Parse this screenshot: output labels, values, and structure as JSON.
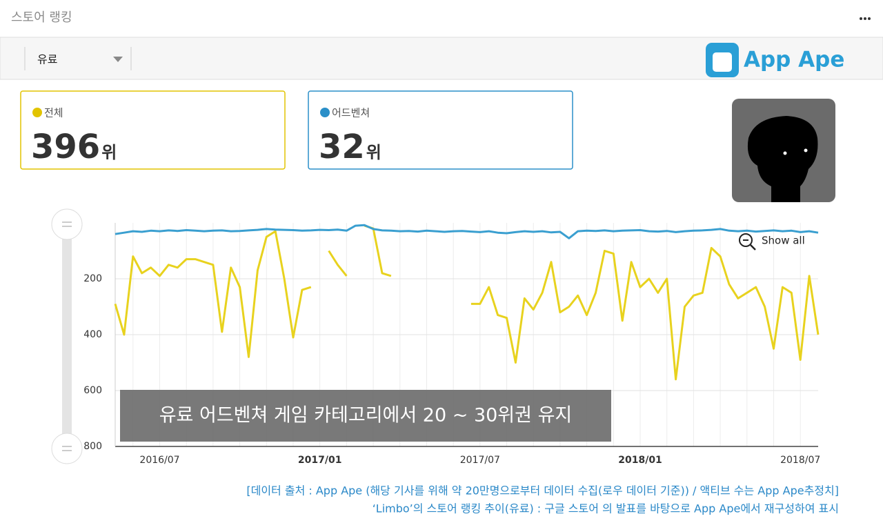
{
  "header": {
    "title": "스토어 랭킹"
  },
  "toolbar": {
    "filter": "유료",
    "logo": "App Ape"
  },
  "cards": [
    {
      "label": "전체",
      "rank": 396,
      "unit": "위",
      "color": "#e2c400"
    },
    {
      "label": "어드벤쳐",
      "rank": 32,
      "unit": "위",
      "color": "#2a8fc8"
    }
  ],
  "chart_data": {
    "type": "line",
    "y_inverted": true,
    "ylim": [
      0,
      800
    ],
    "yticks": [
      200,
      400,
      600,
      800
    ],
    "grid": true,
    "categories": [
      null,
      null,
      null,
      null,
      null,
      "2016/07",
      null,
      null,
      null,
      null,
      null,
      null,
      null,
      null,
      null,
      null,
      null,
      null,
      null,
      null,
      null,
      null,
      null,
      "2017/01",
      null,
      null,
      null,
      null,
      null,
      null,
      null,
      null,
      null,
      null,
      null,
      null,
      null,
      null,
      null,
      null,
      null,
      "2017/07",
      null,
      null,
      null,
      null,
      null,
      null,
      null,
      null,
      null,
      null,
      null,
      null,
      null,
      null,
      null,
      null,
      null,
      "2018/01",
      null,
      null,
      null,
      null,
      null,
      null,
      null,
      null,
      null,
      null,
      null,
      null,
      null,
      null,
      null,
      null,
      null,
      "2018/07",
      null,
      null
    ],
    "series": [
      {
        "color": "#3a9fd0",
        "values": [
          40,
          35,
          30,
          32,
          28,
          30,
          27,
          29,
          26,
          28,
          30,
          28,
          27,
          30,
          29,
          27,
          25,
          22,
          24,
          25,
          26,
          28,
          27,
          25,
          26,
          24,
          28,
          10,
          8,
          22,
          27,
          28,
          30,
          29,
          31,
          28,
          30,
          32,
          30,
          29,
          31,
          33,
          30,
          35,
          37,
          33,
          30,
          32,
          30,
          34,
          32,
          55,
          30,
          28,
          29,
          27,
          30,
          28,
          27,
          26,
          30,
          31,
          29,
          33,
          30,
          28,
          27,
          25,
          22,
          28,
          30,
          28,
          31,
          29,
          27,
          30,
          28,
          33,
          30,
          35
        ]
      },
      {
        "color": "#e8d21e",
        "values": [
          290,
          400,
          120,
          180,
          160,
          190,
          150,
          160,
          130,
          130,
          140,
          150,
          390,
          160,
          230,
          480,
          170,
          50,
          30,
          200,
          410,
          240,
          230,
          null,
          100,
          150,
          190,
          null,
          10,
          20,
          180,
          190,
          null,
          null,
          null,
          null,
          null,
          null,
          null,
          null,
          290,
          290,
          230,
          330,
          340,
          500,
          270,
          310,
          250,
          140,
          320,
          300,
          260,
          330,
          250,
          100,
          110,
          350,
          140,
          230,
          200,
          250,
          200,
          560,
          300,
          260,
          250,
          90,
          120,
          220,
          270,
          250,
          230,
          300,
          450,
          230,
          250,
          490,
          190,
          400
        ]
      }
    ]
  },
  "caption": "유료 어드벤쳐 게임 카테고리에서 20 ~ 30위권 유지",
  "show_all": "Show all",
  "footer": [
    "[데이터 출처 : App Ape (해당 기사를 위해 약 20만명으로부터 데이터 수집(로우 데이터 기준)) / 액티브 수는 App Ape추정치]",
    "‘Limbo’의 스토어 랭킹 추이(유료) : 구글 스토어 의 발표를 바탕으로 App Ape에서 재구성하여 표시"
  ]
}
